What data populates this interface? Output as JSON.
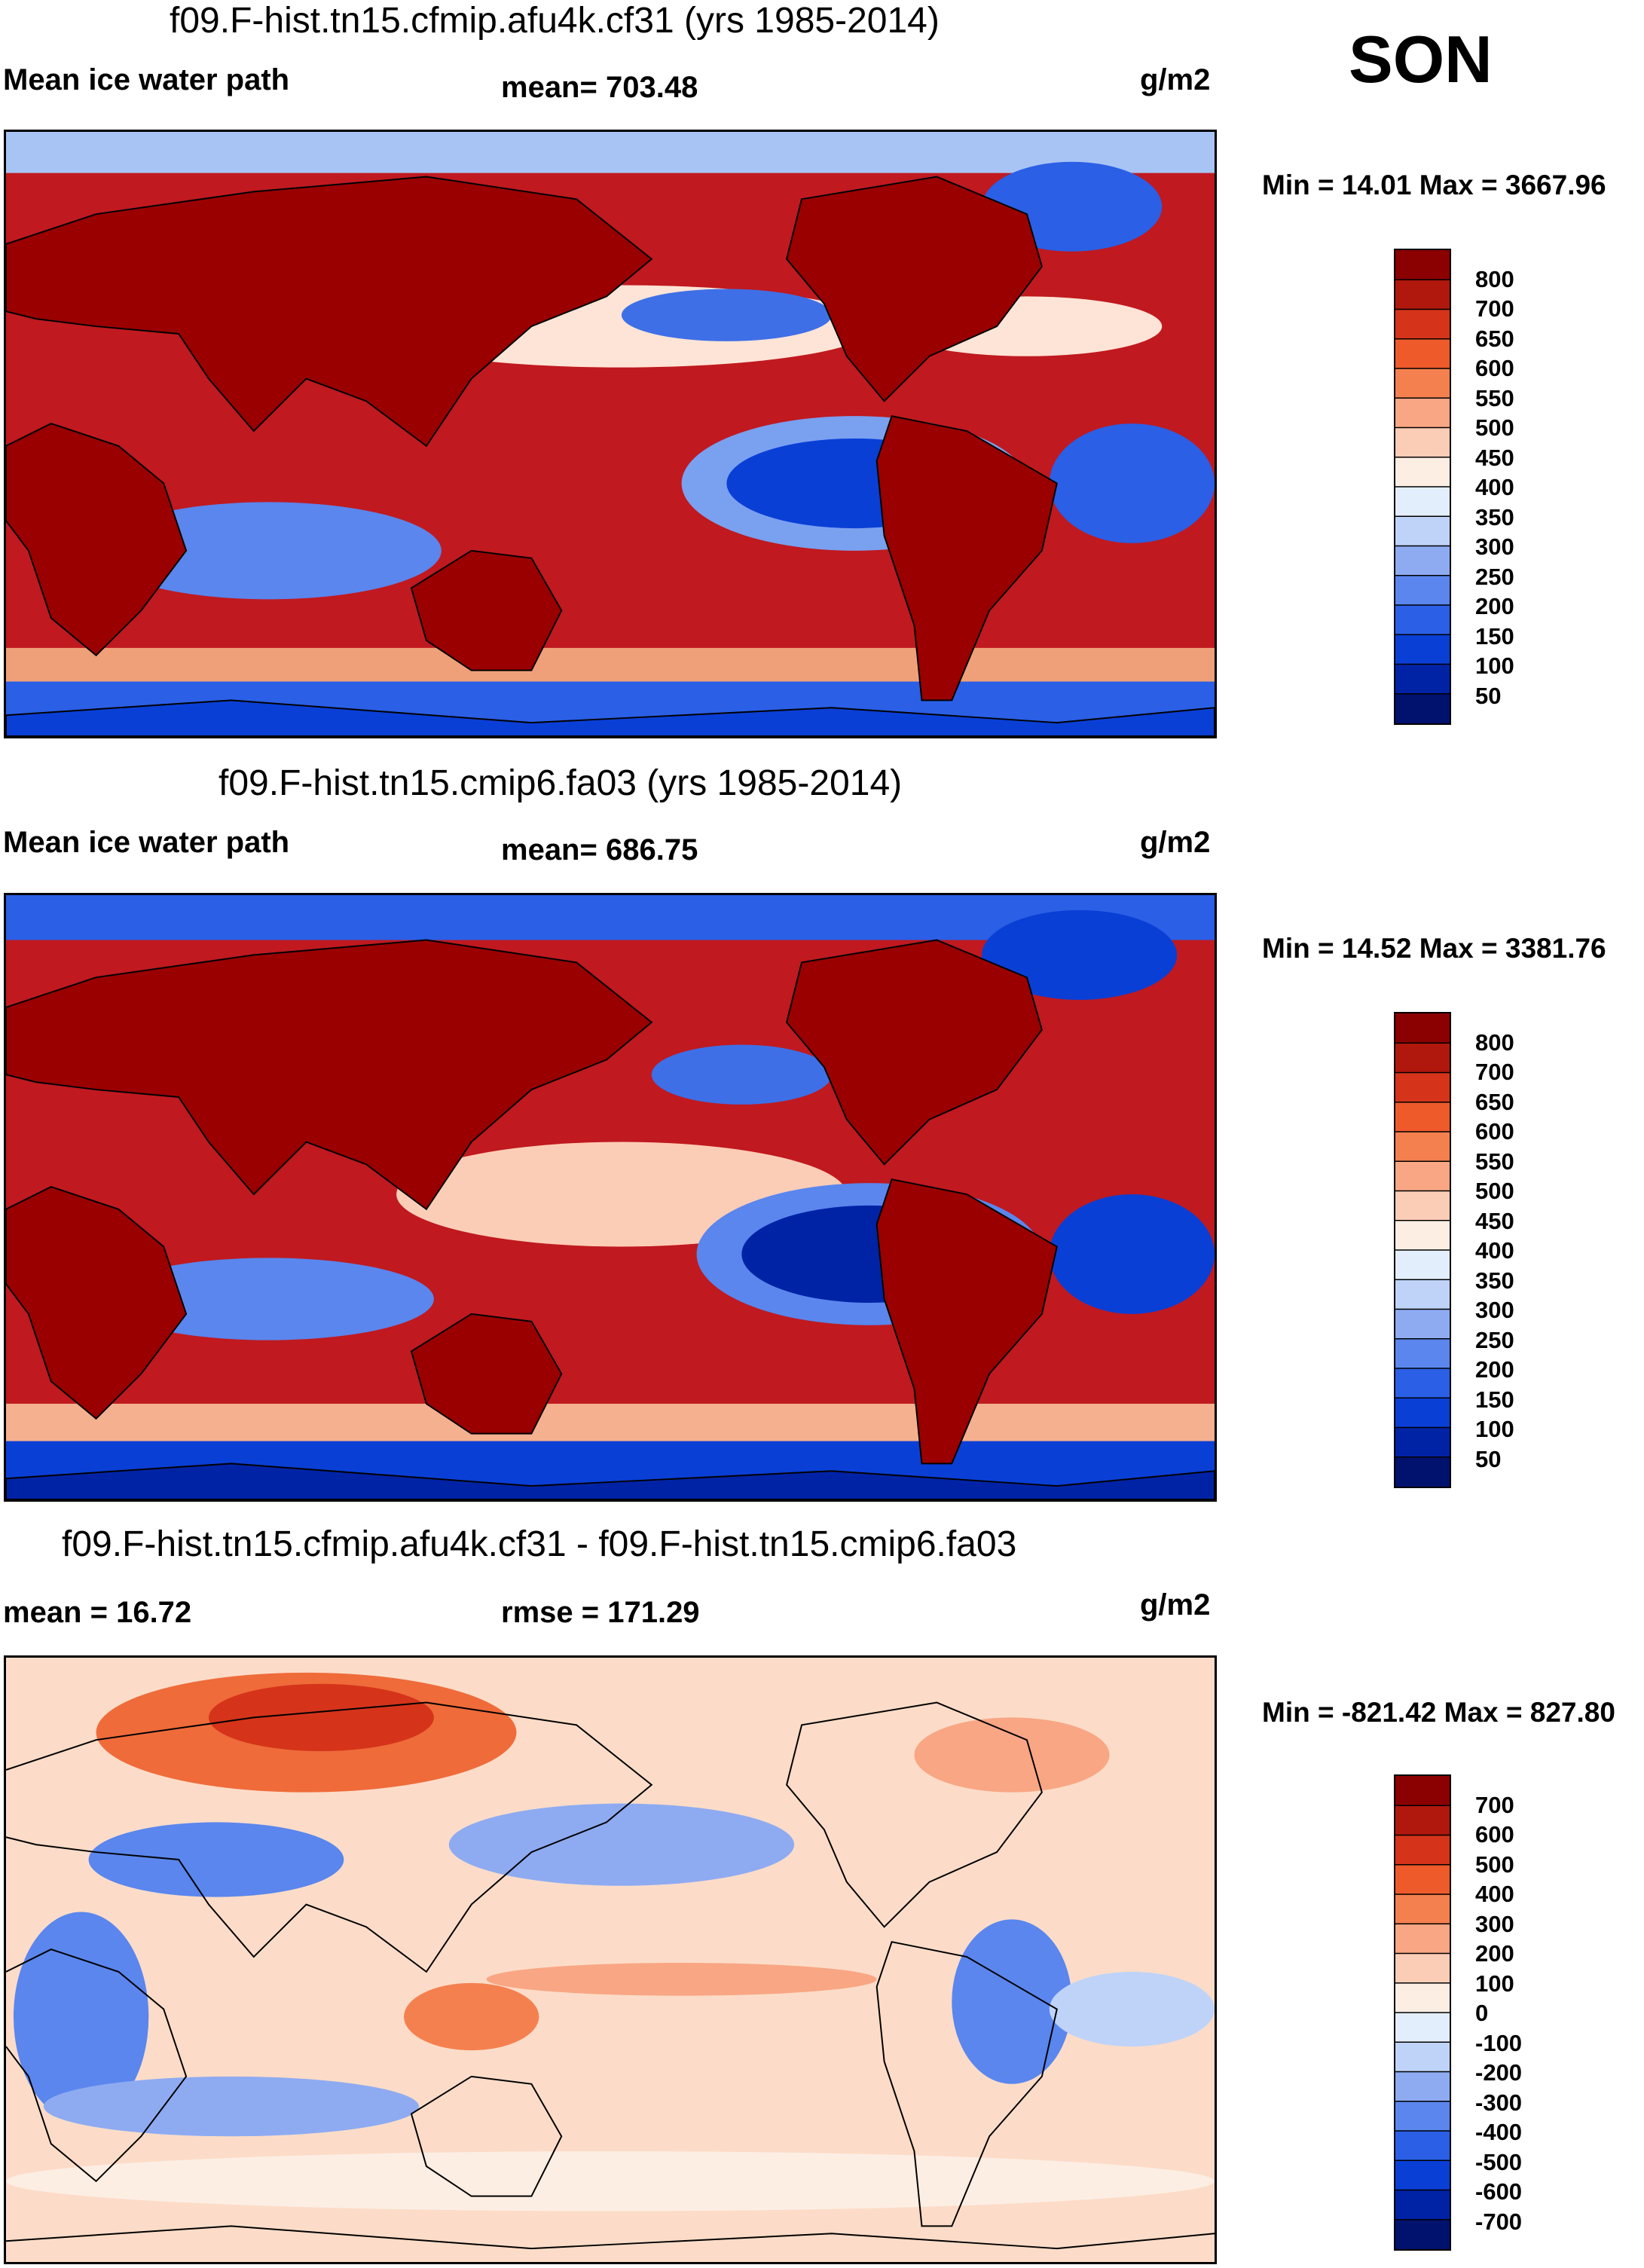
{
  "season": "SON",
  "colors": {
    "absolute": [
      "#00126d",
      "#0023a6",
      "#0a3fd6",
      "#2a5fe6",
      "#5a86ee",
      "#8eabf2",
      "#bfd3f8",
      "#e3eefc",
      "#fdeee4",
      "#fccdb6",
      "#f9a684",
      "#f5804f",
      "#ef5a2b",
      "#d5341a",
      "#b0170d",
      "#8b0000"
    ],
    "difference": [
      "#00126d",
      "#0023a6",
      "#0a3fd6",
      "#2a5fe6",
      "#5a86ee",
      "#8eabf2",
      "#bfd3f8",
      "#e3eefc",
      "#fdeee4",
      "#fccdb6",
      "#f9a684",
      "#f5804f",
      "#ef5a2b",
      "#d5341a",
      "#b0170d",
      "#8b0000"
    ]
  },
  "panels": [
    {
      "title": "f09.F-hist.tn15.cfmip.afu4k.cf31 (yrs 1985-2014)",
      "left_label": "Mean ice water path",
      "center_label": "mean= 703.48",
      "units": "g/m2",
      "minmax": "Min =  14.01 Max = 3667.96",
      "colorbar_labels": [
        "800",
        "700",
        "650",
        "600",
        "550",
        "500",
        "450",
        "400",
        "350",
        "300",
        "250",
        "200",
        "150",
        "100",
        "50"
      ],
      "scheme": "absolute"
    },
    {
      "title": "f09.F-hist.tn15.cmip6.fa03 (yrs 1985-2014)",
      "left_label": "Mean ice water path",
      "center_label": "mean= 686.75",
      "units": "g/m2",
      "minmax": "Min =  14.52 Max = 3381.76",
      "colorbar_labels": [
        "800",
        "700",
        "650",
        "600",
        "550",
        "500",
        "450",
        "400",
        "350",
        "300",
        "250",
        "200",
        "150",
        "100",
        "50"
      ],
      "scheme": "absolute"
    },
    {
      "title": "f09.F-hist.tn15.cfmip.afu4k.cf31 - f09.F-hist.tn15.cmip6.fa03",
      "left_label": "mean =  16.72",
      "center_label": "rmse = 171.29",
      "units": "g/m2",
      "minmax": "Min = -821.42 Max = 827.80",
      "colorbar_labels": [
        "700",
        "600",
        "500",
        "400",
        "300",
        "200",
        "100",
        "0",
        "-100",
        "-200",
        "-300",
        "-400",
        "-500",
        "-600",
        "-700"
      ],
      "scheme": "difference"
    }
  ]
}
